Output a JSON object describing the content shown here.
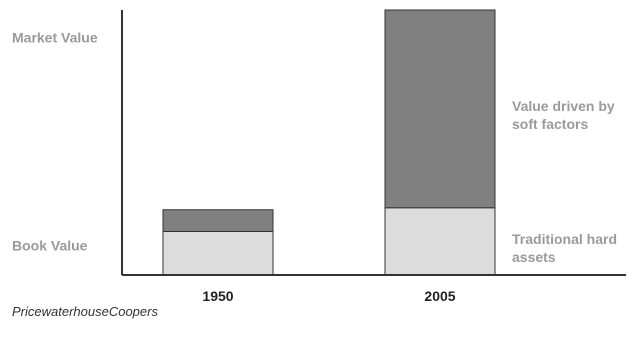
{
  "chart_data": {
    "type": "bar",
    "stacked": true,
    "categories": [
      "1950",
      "2005"
    ],
    "series": [
      {
        "name": "Traditional hard assets",
        "values": [
          22,
          34
        ],
        "color": "#dcdcdc"
      },
      {
        "name": "Value driven by soft factors",
        "values": [
          11,
          100
        ],
        "color": "#808080"
      }
    ],
    "ylim": [
      0,
      134
    ],
    "grid": false,
    "y_annotations": [
      {
        "text": "Market Value",
        "value": 120
      },
      {
        "text": "Book Value",
        "value": 15
      }
    ],
    "legend": [
      {
        "lines": [
          "Value driven by",
          "soft factors"
        ],
        "series": "Value driven by soft factors"
      },
      {
        "lines": [
          "Traditional hard",
          "assets"
        ],
        "series": "Traditional hard assets"
      }
    ],
    "bar_stroke_color": "#333333",
    "axis_color": "#333333"
  },
  "source": "PricewaterhouseCoopers"
}
